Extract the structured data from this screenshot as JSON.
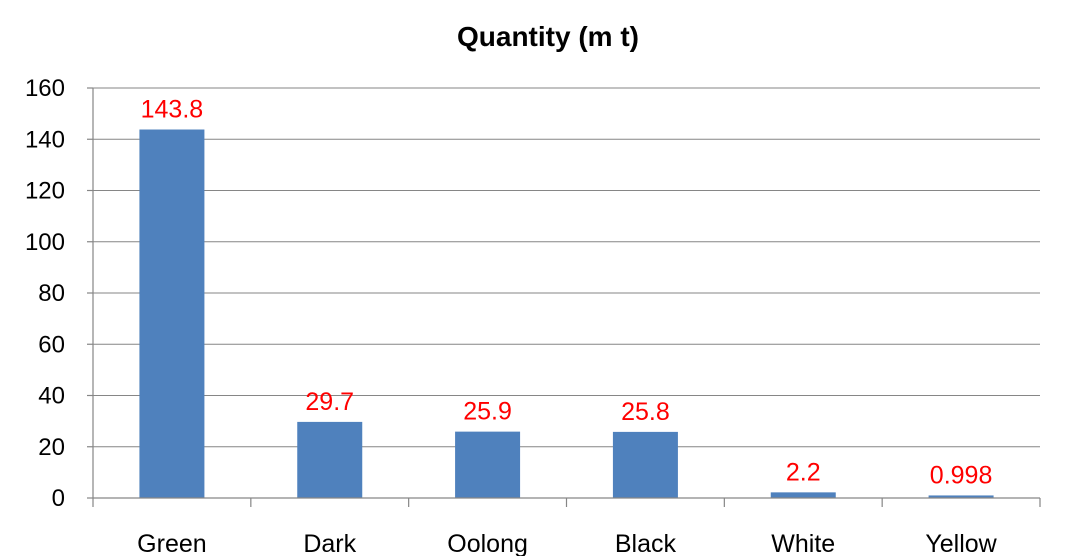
{
  "chart_data": {
    "type": "bar",
    "title": "Quantity (m t)",
    "xlabel": "",
    "ylabel": "",
    "categories": [
      "Green",
      "Dark",
      "Oolong",
      "Black",
      "White",
      "Yellow"
    ],
    "values": [
      143.8,
      29.7,
      25.9,
      25.8,
      2.2,
      0.998
    ],
    "data_labels": [
      "143.8",
      "29.7",
      "25.9",
      "25.8",
      "2.2",
      "0.998"
    ],
    "ylim": [
      0,
      160
    ],
    "yticks": [
      0,
      20,
      40,
      60,
      80,
      100,
      120,
      140,
      160
    ],
    "grid": true,
    "legend": "none",
    "bar_color": "#4F81BD",
    "label_color": "#FF0000"
  }
}
